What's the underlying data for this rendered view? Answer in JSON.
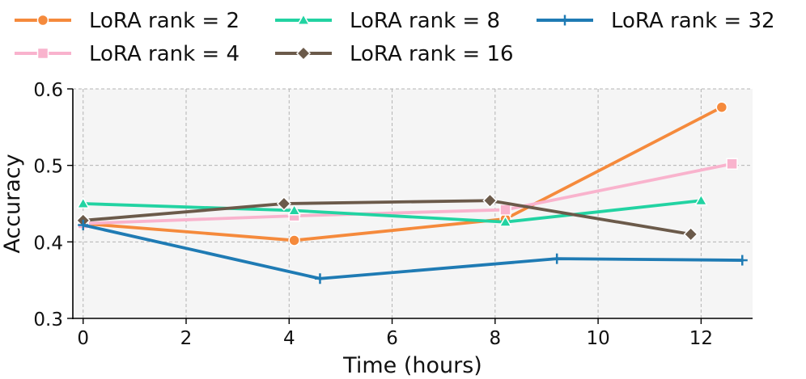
{
  "chart_data": {
    "type": "line",
    "xlabel": "Time (hours)",
    "ylabel": "Accuracy",
    "xlim": [
      -0.2,
      13.0
    ],
    "ylim": [
      0.3,
      0.6
    ],
    "xticks": [
      0,
      2,
      4,
      6,
      8,
      10,
      12
    ],
    "yticks": [
      0.3,
      0.4,
      0.5,
      0.6
    ],
    "ytick_labels": [
      "0.3",
      "0.4",
      "0.5",
      "0.6"
    ],
    "grid": true,
    "legend_position": "top",
    "series": [
      {
        "name": "LoRA rank = 2",
        "color": "#f58a3c",
        "marker": "circle",
        "x": [
          0.0,
          4.1,
          8.2,
          12.4
        ],
        "y": [
          0.424,
          0.402,
          0.43,
          0.576
        ]
      },
      {
        "name": "LoRA rank = 4",
        "color": "#f9b3cd",
        "marker": "square",
        "x": [
          0.0,
          4.1,
          8.2,
          12.6
        ],
        "y": [
          0.424,
          0.434,
          0.442,
          0.502
        ]
      },
      {
        "name": "LoRA rank = 8",
        "color": "#22d3a2",
        "marker": "triangle",
        "x": [
          0.0,
          4.1,
          8.2,
          12.0
        ],
        "y": [
          0.45,
          0.441,
          0.426,
          0.454
        ]
      },
      {
        "name": "LoRA rank = 16",
        "color": "#6b5a4a",
        "marker": "diamond",
        "x": [
          0.0,
          3.9,
          7.9,
          11.8
        ],
        "y": [
          0.428,
          0.45,
          0.454,
          0.41
        ]
      },
      {
        "name": "LoRA rank = 32",
        "color": "#1f7bb4",
        "marker": "plus",
        "x": [
          0.0,
          4.6,
          9.2,
          12.8
        ],
        "y": [
          0.422,
          0.352,
          0.378,
          0.376
        ]
      }
    ]
  }
}
